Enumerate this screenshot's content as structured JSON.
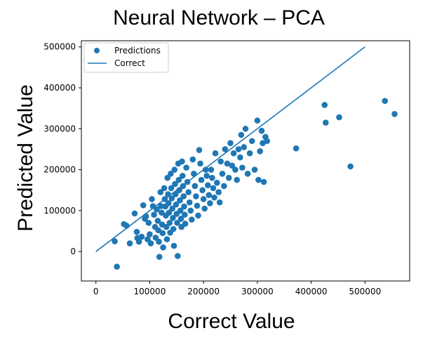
{
  "chart_data": {
    "type": "scatter",
    "title": "Neural Network – PCA",
    "xlabel": "Correct Value",
    "ylabel": "Predicted Value",
    "xlim": [
      -27000,
      583000
    ],
    "ylim": [
      -72000,
      515000
    ],
    "xticks": [
      0,
      100000,
      200000,
      300000,
      400000,
      500000
    ],
    "yticks": [
      0,
      100000,
      200000,
      300000,
      400000,
      500000
    ],
    "xtick_labels": [
      "0",
      "100000",
      "200000",
      "300000",
      "400000",
      "500000"
    ],
    "ytick_labels": [
      "0",
      "100000",
      "200000",
      "300000",
      "400000",
      "500000"
    ],
    "grid": false,
    "legend_position": "top-left",
    "point_color": "#1f77b4",
    "line_color": "#1f77b4",
    "series": [
      {
        "name": "Predictions",
        "kind": "scatter",
        "points": [
          [
            35000,
            25000
          ],
          [
            39000,
            -37000
          ],
          [
            52000,
            67000
          ],
          [
            57000,
            63000
          ],
          [
            63000,
            20000
          ],
          [
            72000,
            93000
          ],
          [
            76000,
            48000
          ],
          [
            77000,
            33000
          ],
          [
            80000,
            24000
          ],
          [
            85000,
            36000
          ],
          [
            88000,
            113000
          ],
          [
            91000,
            80000
          ],
          [
            93000,
            86000
          ],
          [
            96000,
            30000
          ],
          [
            98000,
            70000
          ],
          [
            100000,
            42000
          ],
          [
            102000,
            20000
          ],
          [
            104000,
            128000
          ],
          [
            106000,
            111000
          ],
          [
            108000,
            90000
          ],
          [
            110000,
            60000
          ],
          [
            111000,
            34000
          ],
          [
            113000,
            103000
          ],
          [
            115000,
            75000
          ],
          [
            116000,
            52000
          ],
          [
            117000,
            24000
          ],
          [
            118000,
            -13000
          ],
          [
            120000,
            145000
          ],
          [
            121000,
            111000
          ],
          [
            122000,
            95000
          ],
          [
            123000,
            66000
          ],
          [
            124000,
            45000
          ],
          [
            125000,
            10000
          ],
          [
            127000,
            155000
          ],
          [
            128000,
            128000
          ],
          [
            129000,
            110000
          ],
          [
            130000,
            88000
          ],
          [
            131000,
            60000
          ],
          [
            132000,
            30000
          ],
          [
            133000,
            180000
          ],
          [
            134000,
            140000
          ],
          [
            135000,
            118000
          ],
          [
            136000,
            95000
          ],
          [
            137000,
            70000
          ],
          [
            138000,
            46000
          ],
          [
            139000,
            190000
          ],
          [
            140000,
            155000
          ],
          [
            141000,
            130000
          ],
          [
            142000,
            105000
          ],
          [
            143000,
            82000
          ],
          [
            144000,
            55000
          ],
          [
            145000,
            14000
          ],
          [
            146000,
            200000
          ],
          [
            147000,
            165000
          ],
          [
            148000,
            140000
          ],
          [
            149000,
            115000
          ],
          [
            150000,
            92000
          ],
          [
            151000,
            70000
          ],
          [
            152000,
            -11000
          ],
          [
            153000,
            215000
          ],
          [
            154000,
            175000
          ],
          [
            155000,
            150000
          ],
          [
            156000,
            125000
          ],
          [
            157000,
            100000
          ],
          [
            158000,
            80000
          ],
          [
            159000,
            60000
          ],
          [
            160000,
            220000
          ],
          [
            161000,
            185000
          ],
          [
            162000,
            160000
          ],
          [
            163000,
            135000
          ],
          [
            164000,
            110000
          ],
          [
            165000,
            90000
          ],
          [
            166000,
            68000
          ],
          [
            168000,
            205000
          ],
          [
            170000,
            170000
          ],
          [
            172000,
            145000
          ],
          [
            174000,
            120000
          ],
          [
            176000,
            100000
          ],
          [
            178000,
            78000
          ],
          [
            180000,
            225000
          ],
          [
            182000,
            190000
          ],
          [
            184000,
            160000
          ],
          [
            186000,
            135000
          ],
          [
            188000,
            112000
          ],
          [
            190000,
            88000
          ],
          [
            192000,
            248000
          ],
          [
            194000,
            215000
          ],
          [
            196000,
            175000
          ],
          [
            198000,
            150000
          ],
          [
            200000,
            128000
          ],
          [
            202000,
            105000
          ],
          [
            204000,
            200000
          ],
          [
            206000,
            185000
          ],
          [
            208000,
            162000
          ],
          [
            210000,
            138000
          ],
          [
            212000,
            118000
          ],
          [
            214000,
            200000
          ],
          [
            216000,
            180000
          ],
          [
            218000,
            155000
          ],
          [
            220000,
            132000
          ],
          [
            222000,
            240000
          ],
          [
            225000,
            168000
          ],
          [
            228000,
            145000
          ],
          [
            230000,
            120000
          ],
          [
            232000,
            220000
          ],
          [
            235000,
            190000
          ],
          [
            238000,
            160000
          ],
          [
            240000,
            250000
          ],
          [
            244000,
            215000
          ],
          [
            247000,
            180000
          ],
          [
            250000,
            265000
          ],
          [
            253000,
            210000
          ],
          [
            256000,
            240000
          ],
          [
            259000,
            200000
          ],
          [
            262000,
            175000
          ],
          [
            265000,
            250000
          ],
          [
            268000,
            230000
          ],
          [
            270000,
            285000
          ],
          [
            272000,
            205000
          ],
          [
            275000,
            255000
          ],
          [
            278000,
            300000
          ],
          [
            282000,
            190000
          ],
          [
            286000,
            240000
          ],
          [
            290000,
            270000
          ],
          [
            295000,
            200000
          ],
          [
            300000,
            320000
          ],
          [
            302000,
            175000
          ],
          [
            305000,
            245000
          ],
          [
            308000,
            295000
          ],
          [
            310000,
            265000
          ],
          [
            312000,
            170000
          ],
          [
            315000,
            280000
          ],
          [
            318000,
            270000
          ],
          [
            372000,
            252000
          ],
          [
            425000,
            358000
          ],
          [
            427000,
            315000
          ],
          [
            452000,
            328000
          ],
          [
            473000,
            208000
          ],
          [
            537000,
            368000
          ],
          [
            555000,
            336000
          ]
        ]
      },
      {
        "name": "Correct",
        "kind": "line",
        "x": [
          0,
          500000
        ],
        "y": [
          0,
          500000
        ]
      }
    ]
  }
}
